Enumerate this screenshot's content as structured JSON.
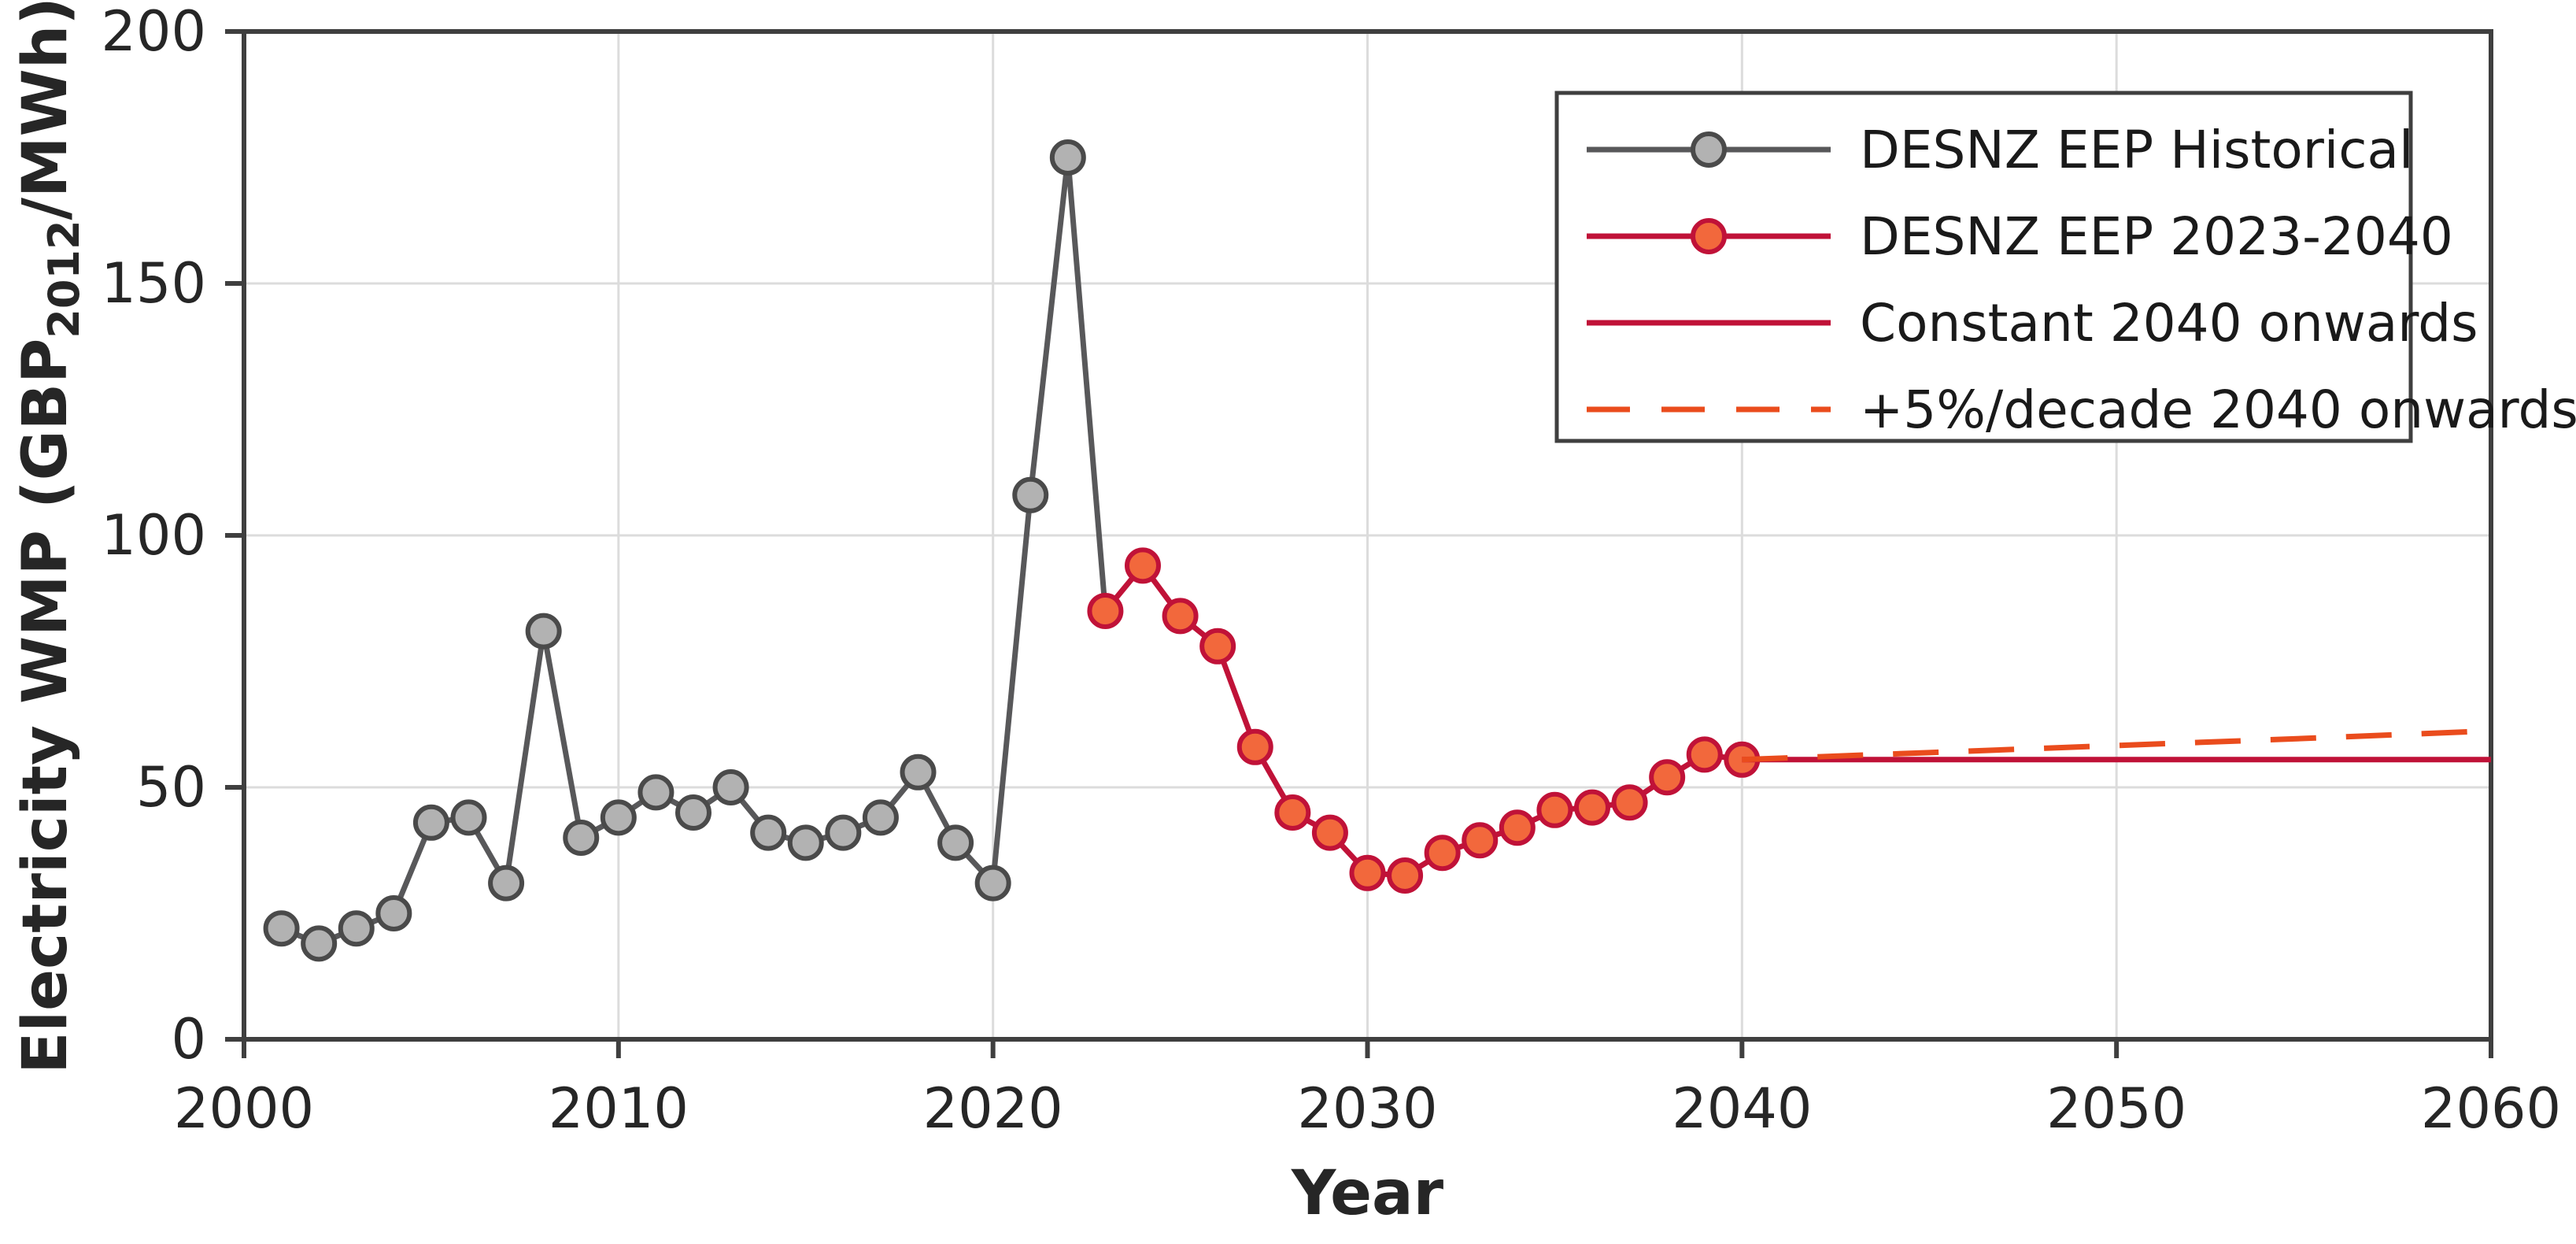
{
  "figure": {
    "background": "#ffffff",
    "axis_color": "#3f3f3f",
    "grid_color": "#dcdcdc",
    "tick_label_color": "#262626",
    "label_color": "#262626",
    "xlabel": "Year",
    "ylabel_pre": "Electricity WMP (GBP",
    "ylabel_sub": "2012",
    "ylabel_post": "/MWh)"
  },
  "chart_data": {
    "type": "line",
    "title": "",
    "xlabel": "Year",
    "ylabel": "Electricity WMP (GBP_2012/MWh)",
    "xlim": [
      2000,
      2060
    ],
    "ylim": [
      0,
      200
    ],
    "xticks": [
      2000,
      2010,
      2020,
      2030,
      2040,
      2050,
      2060
    ],
    "yticks": [
      0,
      50,
      100,
      150,
      200
    ],
    "grid": true,
    "legend_position": "top-right",
    "series": [
      {
        "name": "DESNZ EEP Historical",
        "style": "line+markers",
        "line_color": "#58585a",
        "marker_fill": "#b2b2b2",
        "marker_edge": "#4a4a4a",
        "marker_last": false,
        "x": [
          2001,
          2002,
          2003,
          2004,
          2005,
          2006,
          2007,
          2008,
          2009,
          2010,
          2011,
          2012,
          2013,
          2014,
          2015,
          2016,
          2017,
          2018,
          2019,
          2020,
          2021,
          2022,
          2023
        ],
        "y": [
          22,
          19,
          22,
          25,
          43,
          44,
          31,
          81,
          40,
          44,
          49,
          45,
          50,
          41,
          39,
          41,
          44,
          53,
          39,
          31,
          108,
          175,
          85
        ]
      },
      {
        "name": "DESNZ EEP 2023-2040",
        "style": "line+markers",
        "line_color": "#c01238",
        "marker_fill": "#f2683c",
        "marker_edge": "#c01238",
        "marker_last": true,
        "x": [
          2023,
          2024,
          2025,
          2026,
          2027,
          2028,
          2029,
          2030,
          2031,
          2032,
          2033,
          2034,
          2035,
          2036,
          2037,
          2038,
          2039,
          2040
        ],
        "y": [
          85,
          94,
          84,
          78,
          58,
          45,
          41,
          33,
          32.5,
          37,
          39.5,
          42,
          45.5,
          46,
          47,
          52,
          56.5,
          55.5
        ]
      },
      {
        "name": "Constant 2040 onwards",
        "style": "line",
        "line_color": "#c01238",
        "x": [
          2040,
          2060
        ],
        "y": [
          55.5,
          55.5
        ]
      },
      {
        "name": "+5%/decade 2040 onwards",
        "style": "dashed",
        "line_color": "#ea4c1d",
        "dash": [
          58,
          38
        ],
        "x": [
          2040,
          2045,
          2050,
          2055,
          2060
        ],
        "y": [
          55.5,
          56.9,
          58.3,
          59.7,
          61.2
        ]
      }
    ],
    "legend": {
      "labels": [
        "DESNZ EEP Historical",
        "DESNZ EEP 2023-2040",
        "Constant 2040 onwards",
        "+5%/decade 2040 onwards"
      ]
    }
  }
}
